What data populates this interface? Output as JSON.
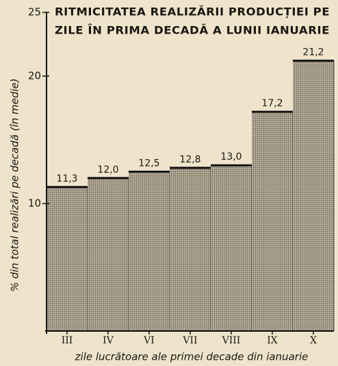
{
  "chart_data": {
    "type": "bar",
    "title": [
      "RITMICITATEA REALIZĂRII PRODUCȚIEI PE",
      "ZILE ÎN PRIMA DECADĂ A LUNII IANUARIE"
    ],
    "y_label": "% din total realizări pe decadă (în medie)",
    "x_label": "zile lucrătoare ale primei decade din ianuarie",
    "categories": [
      "III",
      "IV",
      "VI",
      "VII",
      "VIII",
      "IX",
      "X"
    ],
    "values": [
      11.3,
      12.0,
      12.5,
      12.8,
      13.0,
      17.2,
      21.2
    ],
    "value_labels": [
      "11,3",
      "12,0",
      "12,5",
      "12,8",
      "13,0",
      "17,2",
      "21,2"
    ],
    "color": "#b9af9b",
    "ylim": [
      0,
      25
    ],
    "yticks": [
      10,
      20,
      25
    ]
  }
}
